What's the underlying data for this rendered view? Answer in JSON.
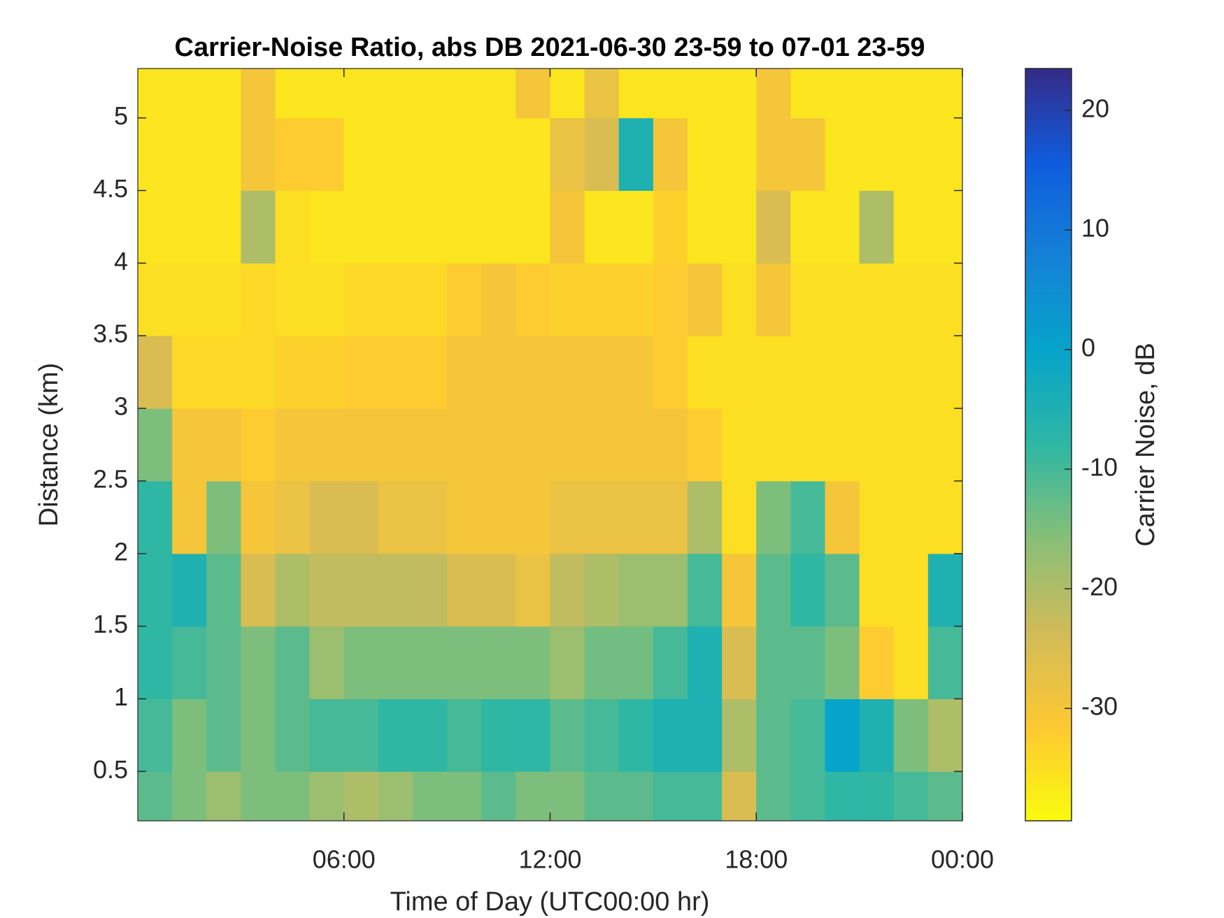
{
  "chart_data": {
    "type": "heatmap",
    "title": "Carrier-Noise Ratio, abs DB 2021-06-30 23-59 to 07-01 23-59",
    "xlabel": "Time of Day (UTC00:00 hr)",
    "ylabel": "Distance (km)",
    "colorbar_label": "Carrier Noise, dB",
    "x": [
      0.5,
      1.5,
      2.5,
      3.5,
      4.5,
      5.5,
      6.5,
      7.5,
      8.5,
      9.5,
      10.5,
      11.5,
      12.5,
      13.5,
      14.5,
      15.5,
      16.5,
      17.5,
      18.5,
      19.5,
      20.5,
      21.5,
      22.5,
      23.5
    ],
    "y": [
      0.25,
      0.75,
      1.25,
      1.75,
      2.25,
      2.75,
      3.25,
      3.75,
      4.25,
      4.75,
      5.25
    ],
    "values": [
      [
        -12,
        -15,
        -18,
        -15,
        -15,
        -18,
        -20,
        -18,
        -15,
        -15,
        -12,
        -15,
        -15,
        -12,
        -12,
        -10,
        -10,
        -25,
        -12,
        -10,
        -8,
        -8,
        -10,
        -12
      ],
      [
        -10,
        -15,
        -12,
        -15,
        -12,
        -10,
        -10,
        -8,
        -8,
        -10,
        -8,
        -8,
        -12,
        -10,
        -8,
        -5,
        -5,
        -20,
        -12,
        -10,
        0,
        -5,
        -15,
        -20
      ],
      [
        -8,
        -10,
        -12,
        -15,
        -12,
        -18,
        -15,
        -15,
        -15,
        -15,
        -15,
        -15,
        -18,
        -14,
        -14,
        -10,
        -5,
        -25,
        -12,
        -12,
        -15,
        -32,
        -35,
        -10
      ],
      [
        -8,
        -5,
        -12,
        -25,
        -20,
        -22,
        -22,
        -22,
        -22,
        -25,
        -25,
        -28,
        -22,
        -20,
        -18,
        -18,
        -10,
        -30,
        -12,
        -8,
        -12,
        -35,
        -35,
        -5
      ],
      [
        -8,
        -30,
        -15,
        -30,
        -28,
        -25,
        -25,
        -28,
        -28,
        -30,
        -30,
        -30,
        -28,
        -28,
        -28,
        -28,
        -20,
        -35,
        -15,
        -10,
        -30,
        -35,
        -35,
        -35
      ],
      [
        -15,
        -30,
        -30,
        -32,
        -30,
        -30,
        -30,
        -30,
        -30,
        -30,
        -30,
        -30,
        -30,
        -30,
        -30,
        -30,
        -32,
        -35,
        -35,
        -35,
        -35,
        -35,
        -35,
        -35
      ],
      [
        -25,
        -34,
        -34,
        -34,
        -33,
        -33,
        -32,
        -32,
        -32,
        -30,
        -30,
        -30,
        -30,
        -30,
        -30,
        -32,
        -35,
        -35,
        -35,
        -35,
        -35,
        -35,
        -35,
        -35
      ],
      [
        -35,
        -35,
        -35,
        -34,
        -35,
        -35,
        -34,
        -34,
        -34,
        -32,
        -30,
        -32,
        -33,
        -33,
        -33,
        -32,
        -30,
        -35,
        -30,
        -35,
        -35,
        -35,
        -35,
        -35
      ],
      [
        -36,
        -36,
        -36,
        -20,
        -35,
        -36,
        -36,
        -36,
        -36,
        -36,
        -36,
        -36,
        -30,
        -36,
        -36,
        -33,
        -36,
        -36,
        -25,
        -36,
        -36,
        -20,
        -36,
        -36
      ],
      [
        -36,
        -36,
        -36,
        -30,
        -32,
        -32,
        -36,
        -36,
        -36,
        -36,
        -36,
        -36,
        -28,
        -25,
        -5,
        -30,
        -36,
        -36,
        -30,
        -30,
        -36,
        -36,
        -36,
        -36
      ],
      [
        -36,
        -36,
        -36,
        -30,
        -36,
        -36,
        -36,
        -36,
        -36,
        -36,
        -36,
        -30,
        -36,
        -28,
        -36,
        -36,
        -36,
        -36,
        -30,
        -36,
        -36,
        -36,
        -36,
        -36
      ]
    ],
    "xlim": [
      0,
      24
    ],
    "xticks": [
      {
        "value": 6,
        "label": "06:00"
      },
      {
        "value": 12,
        "label": "12:00"
      },
      {
        "value": 18,
        "label": "18:00"
      },
      {
        "value": 24,
        "label": "00:00"
      }
    ],
    "ylim": [
      0.16,
      5.34
    ],
    "yticks": [
      0.5,
      1,
      1.5,
      2,
      2.5,
      3,
      3.5,
      4,
      4.5,
      5
    ],
    "clim": [
      -39.4,
      23.5
    ],
    "cticks": [
      -30,
      -20,
      -10,
      0,
      10,
      20
    ],
    "colormap": [
      "#f9fb0e",
      "#fec832",
      "#d1bb59",
      "#87bf77",
      "#2eb7a4",
      "#06a4ca",
      "#1481d6",
      "#0f5cdd",
      "#352a87"
    ]
  }
}
